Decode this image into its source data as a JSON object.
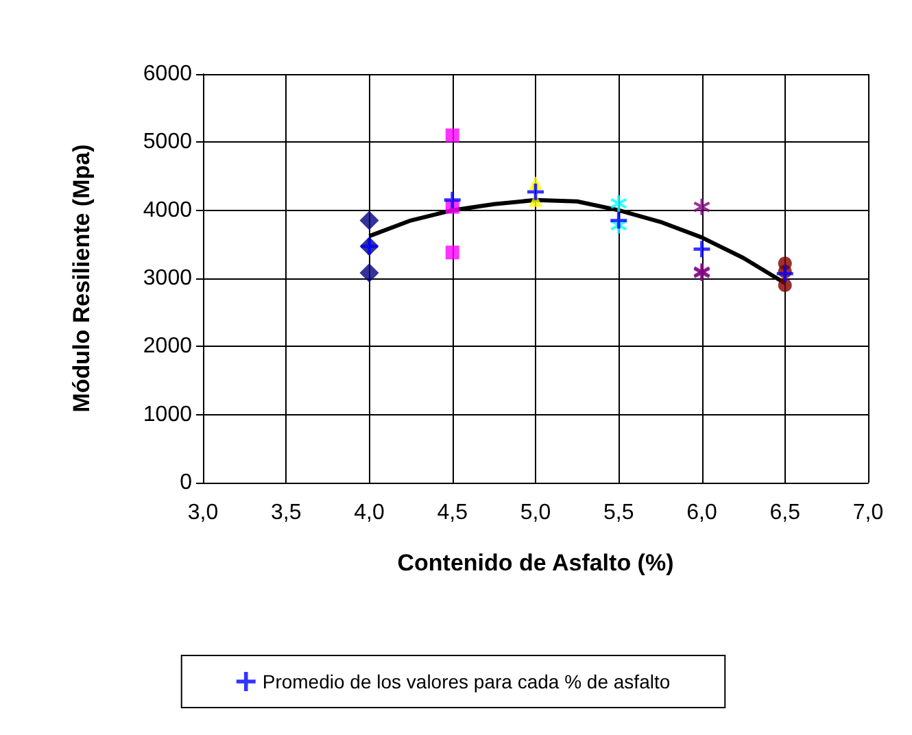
{
  "chart_data": {
    "type": "scatter",
    "xlabel": "Contenido de Asfalto (%)",
    "ylabel": "Módulo Resiliente (Mpa)",
    "xlim": [
      3,
      7
    ],
    "xticks": [
      {
        "value": 3,
        "label": "3,0"
      },
      {
        "value": 3.5,
        "label": "3,5"
      },
      {
        "value": 4,
        "label": "4,0"
      },
      {
        "value": 4.5,
        "label": "4,5"
      },
      {
        "value": 5,
        "label": "5,0"
      },
      {
        "value": 5.5,
        "label": "5,5"
      },
      {
        "value": 6,
        "label": "6,0"
      },
      {
        "value": 6.5,
        "label": "6,5"
      },
      {
        "value": 7,
        "label": "7,0"
      }
    ],
    "ylim": [
      0,
      6000
    ],
    "yticks": [
      0,
      1000,
      2000,
      3000,
      4000,
      5000,
      6000
    ],
    "grid": true,
    "legend": "bottom",
    "series": [
      {
        "color": "#000080",
        "marker": "diamond",
        "x": [
          4,
          4,
          4
        ],
        "values": [
          3850,
          3470,
          3080
        ]
      },
      {
        "color": "#ff00ff",
        "marker": "square",
        "x": [
          4.5,
          4.5,
          4.5
        ],
        "values": [
          5100,
          4050,
          3380
        ]
      },
      {
        "color": "#ffff00",
        "marker": "triangle",
        "x": [
          5,
          5
        ],
        "values": [
          4400,
          4150
        ]
      },
      {
        "color": "#00ffff",
        "marker": "star",
        "x": [
          5.5,
          5.5
        ],
        "values": [
          4100,
          3780
        ]
      },
      {
        "color": "#800080",
        "marker": "star",
        "x": [
          6,
          6,
          6
        ],
        "values": [
          4050,
          3100,
          3080
        ]
      },
      {
        "color": "#800000",
        "marker": "circle",
        "x": [
          6.5,
          6.5,
          6.5
        ],
        "values": [
          3220,
          3100,
          2900
        ]
      },
      {
        "type": "line",
        "color": "#000000",
        "marker": "none",
        "x": [
          4,
          4.25,
          4.5,
          4.75,
          5,
          5.25,
          5.5,
          5.75,
          6,
          6.25,
          6.5
        ],
        "values": [
          3620,
          3850,
          4000,
          4090,
          4150,
          4130,
          4000,
          3830,
          3600,
          3300,
          2930
        ]
      },
      {
        "name": "Promedio de los valores para cada % de asfalto",
        "color": "#0000ff",
        "marker": "cross",
        "x": [
          4,
          4.5,
          5,
          5.5,
          6,
          6.5
        ],
        "values": [
          3470,
          4150,
          4270,
          3850,
          3430,
          3070
        ]
      }
    ]
  }
}
